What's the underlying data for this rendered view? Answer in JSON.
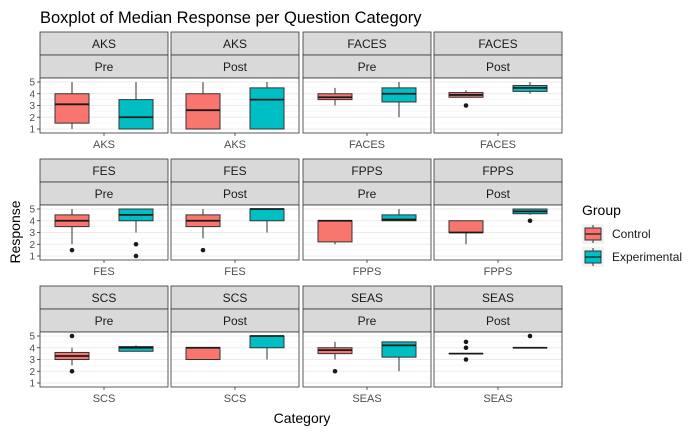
{
  "chart_data": {
    "type": "boxplot",
    "title": "Boxplot of Median Response per Question Category",
    "xlabel": "Category",
    "ylabel": "Response",
    "ylim": [
      1,
      5
    ],
    "yticks": [
      1,
      2,
      3,
      4,
      5
    ],
    "grid": true,
    "legend": {
      "title": "Group",
      "position": "right",
      "entries": [
        {
          "name": "Control",
          "color": "#F8766D"
        },
        {
          "name": "Experimental",
          "color": "#00BFC4"
        }
      ]
    },
    "panels": [
      {
        "row_label": "AKS",
        "col_label": "Pre",
        "category": "AKS",
        "boxes": [
          {
            "group": "Control",
            "min": 1,
            "q1": 1.5,
            "median": 3.1,
            "q3": 4,
            "max": 5,
            "outliers": []
          },
          {
            "group": "Experimental",
            "min": 1,
            "q1": 1,
            "median": 2,
            "q3": 3.5,
            "max": 5,
            "outliers": []
          }
        ]
      },
      {
        "row_label": "AKS",
        "col_label": "Post",
        "category": "AKS",
        "boxes": [
          {
            "group": "Control",
            "min": 1,
            "q1": 1,
            "median": 2.6,
            "q3": 4,
            "max": 5,
            "outliers": []
          },
          {
            "group": "Experimental",
            "min": 1,
            "q1": 1,
            "median": 3.5,
            "q3": 4.5,
            "max": 5,
            "outliers": []
          }
        ]
      },
      {
        "row_label": "FACES",
        "col_label": "Pre",
        "category": "FACES",
        "boxes": [
          {
            "group": "Control",
            "min": 3,
            "q1": 3.5,
            "median": 3.7,
            "q3": 4,
            "max": 4.5,
            "outliers": []
          },
          {
            "group": "Experimental",
            "min": 2,
            "q1": 3.3,
            "median": 4,
            "q3": 4.5,
            "max": 5,
            "outliers": []
          }
        ]
      },
      {
        "row_label": "FACES",
        "col_label": "Post",
        "category": "FACES",
        "boxes": [
          {
            "group": "Control",
            "min": 3.7,
            "q1": 3.7,
            "median": 3.9,
            "q3": 4.1,
            "max": 4.3,
            "outliers": [
              3
            ]
          },
          {
            "group": "Experimental",
            "min": 4,
            "q1": 4.2,
            "median": 4.5,
            "q3": 4.7,
            "max": 5,
            "outliers": []
          }
        ]
      },
      {
        "row_label": "FES",
        "col_label": "Pre",
        "category": "FES",
        "boxes": [
          {
            "group": "Control",
            "min": 2,
            "q1": 3.5,
            "median": 4,
            "q3": 4.5,
            "max": 5,
            "outliers": [
              1.5
            ]
          },
          {
            "group": "Experimental",
            "min": 3,
            "q1": 4,
            "median": 4.5,
            "q3": 5,
            "max": 5,
            "outliers": [
              2,
              1
            ]
          }
        ]
      },
      {
        "row_label": "FES",
        "col_label": "Post",
        "category": "FES",
        "boxes": [
          {
            "group": "Control",
            "min": 2.5,
            "q1": 3.5,
            "median": 4,
            "q3": 4.5,
            "max": 5,
            "outliers": [
              1.5
            ]
          },
          {
            "group": "Experimental",
            "min": 3,
            "q1": 4,
            "median": 5,
            "q3": 5,
            "max": 5,
            "outliers": []
          }
        ]
      },
      {
        "row_label": "FPPS",
        "col_label": "Pre",
        "category": "FPPS",
        "boxes": [
          {
            "group": "Control",
            "min": 2,
            "q1": 2.2,
            "median": 4,
            "q3": 4,
            "max": 4,
            "outliers": []
          },
          {
            "group": "Experimental",
            "min": 4,
            "q1": 4,
            "median": 4.1,
            "q3": 4.5,
            "max": 5,
            "outliers": []
          }
        ]
      },
      {
        "row_label": "FPPS",
        "col_label": "Post",
        "category": "FPPS",
        "boxes": [
          {
            "group": "Control",
            "min": 2,
            "q1": 3,
            "median": 3,
            "q3": 4,
            "max": 4,
            "outliers": []
          },
          {
            "group": "Experimental",
            "min": 4.5,
            "q1": 4.6,
            "median": 4.8,
            "q3": 5,
            "max": 5,
            "outliers": [
              4
            ]
          }
        ]
      },
      {
        "row_label": "SCS",
        "col_label": "Pre",
        "category": "SCS",
        "boxes": [
          {
            "group": "Control",
            "min": 2.5,
            "q1": 3,
            "median": 3.3,
            "q3": 3.6,
            "max": 4,
            "outliers": [
              5,
              2
            ]
          },
          {
            "group": "Experimental",
            "min": 3.7,
            "q1": 3.7,
            "median": 4,
            "q3": 4.1,
            "max": 4.2,
            "outliers": []
          }
        ]
      },
      {
        "row_label": "SCS",
        "col_label": "Post",
        "category": "SCS",
        "boxes": [
          {
            "group": "Control",
            "min": 3,
            "q1": 3,
            "median": 4,
            "q3": 4,
            "max": 4,
            "outliers": []
          },
          {
            "group": "Experimental",
            "min": 3,
            "q1": 4,
            "median": 5,
            "q3": 5,
            "max": 5,
            "outliers": []
          }
        ]
      },
      {
        "row_label": "SEAS",
        "col_label": "Pre",
        "category": "SEAS",
        "boxes": [
          {
            "group": "Control",
            "min": 3,
            "q1": 3.5,
            "median": 3.8,
            "q3": 4,
            "max": 4.5,
            "outliers": [
              2
            ]
          },
          {
            "group": "Experimental",
            "min": 2,
            "q1": 3.2,
            "median": 4.2,
            "q3": 4.5,
            "max": 4.5,
            "outliers": []
          }
        ]
      },
      {
        "row_label": "SEAS",
        "col_label": "Post",
        "category": "SEAS",
        "boxes": [
          {
            "group": "Control",
            "min": 3.5,
            "q1": 3.5,
            "median": 3.5,
            "q3": 3.5,
            "max": 3.5,
            "outliers": [
              4.5,
              4,
              3
            ]
          },
          {
            "group": "Experimental",
            "min": 4,
            "q1": 4,
            "median": 4,
            "q3": 4,
            "max": 4,
            "outliers": [
              5
            ]
          }
        ]
      }
    ]
  }
}
